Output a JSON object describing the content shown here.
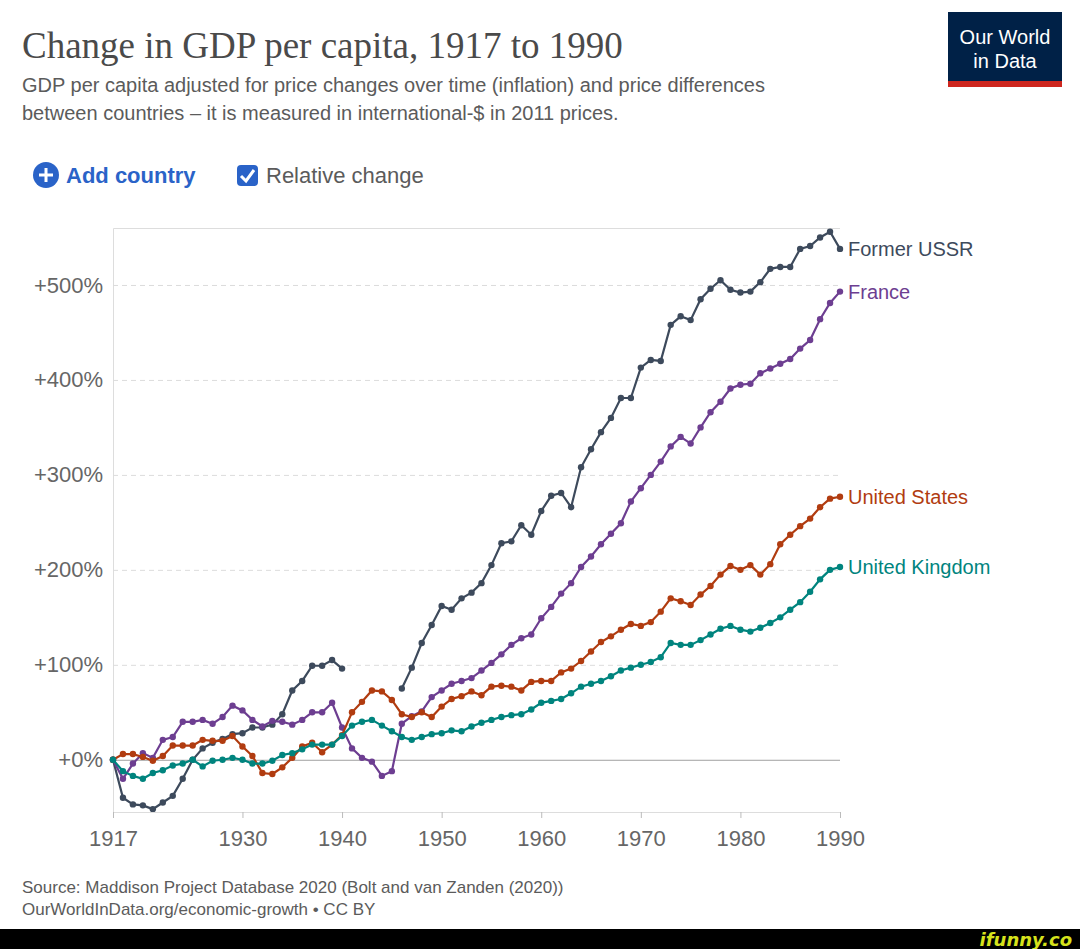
{
  "chart_data": {
    "type": "line",
    "title": "Change in GDP per capita, 1917 to 1990",
    "subtitle": [
      "GDP per capita adjusted for price changes over time (inflation) and price differences",
      "between countries – it is measured in international-$ in 2011 prices."
    ],
    "logo_text": [
      "Our World",
      "in Data"
    ],
    "controls": [
      "Add country",
      "Relative change"
    ],
    "source": [
      "Source: Maddison Project Database 2020 (Bolt and van Zanden (2020))",
      "OurWorldInData.org/economic-growth • CC BY"
    ],
    "watermark": "ifunny.co",
    "x": [
      1917,
      1918,
      1919,
      1920,
      1921,
      1922,
      1923,
      1924,
      1925,
      1926,
      1927,
      1928,
      1929,
      1930,
      1931,
      1932,
      1933,
      1934,
      1935,
      1936,
      1937,
      1938,
      1939,
      1940,
      1941,
      1942,
      1943,
      1944,
      1945,
      1946,
      1947,
      1948,
      1949,
      1950,
      1951,
      1952,
      1953,
      1954,
      1955,
      1956,
      1957,
      1958,
      1959,
      1960,
      1961,
      1962,
      1963,
      1964,
      1965,
      1966,
      1967,
      1968,
      1969,
      1970,
      1971,
      1972,
      1973,
      1974,
      1975,
      1976,
      1977,
      1978,
      1979,
      1980,
      1981,
      1982,
      1983,
      1984,
      1985,
      1986,
      1987,
      1988,
      1989,
      1990
    ],
    "xlim": [
      1917,
      1990
    ],
    "xticks": [
      1917,
      1930,
      1940,
      1950,
      1960,
      1970,
      1980,
      1990
    ],
    "ylim": [
      -55,
      560
    ],
    "yticks": [
      {
        "value": 0,
        "label": "+0%"
      },
      {
        "value": 100,
        "label": "+100%"
      },
      {
        "value": 200,
        "label": "+200%"
      },
      {
        "value": 300,
        "label": "+300%"
      },
      {
        "value": 400,
        "label": "+400%"
      },
      {
        "value": 500,
        "label": "+500%"
      }
    ],
    "grid": true,
    "marker": "circle",
    "series": [
      {
        "name": "Former USSR",
        "color": "#3d4a5c",
        "values": [
          0,
          -40,
          -47,
          -48,
          -52,
          -45,
          -38,
          -20,
          0,
          12,
          18,
          22,
          27,
          28,
          34,
          34,
          37,
          48,
          73,
          83,
          99,
          99,
          105,
          96,
          null,
          null,
          null,
          null,
          null,
          75,
          97,
          123,
          142,
          162,
          158,
          170,
          176,
          186,
          205,
          228,
          230,
          247,
          237,
          262,
          278,
          281,
          266,
          308,
          327,
          345,
          360,
          381,
          381,
          413,
          421,
          420,
          458,
          467,
          463,
          485,
          496,
          505,
          495,
          492,
          493,
          503,
          517,
          519,
          519,
          538,
          541,
          550,
          556,
          538
        ]
      },
      {
        "name": "France",
        "color": "#6d3e91",
        "values": [
          0,
          -20,
          -4,
          7,
          2,
          21,
          24,
          40,
          40,
          42,
          38,
          45,
          57,
          52,
          42,
          35,
          41,
          40,
          37,
          42,
          50,
          50,
          60,
          34,
          12,
          2,
          -2,
          -17,
          -12,
          38,
          46,
          51,
          66,
          73,
          80,
          83,
          86,
          94,
          102,
          111,
          121,
          128,
          132,
          149,
          161,
          175,
          186,
          203,
          214,
          227,
          238,
          249,
          272,
          286,
          300,
          314,
          330,
          340,
          333,
          350,
          366,
          377,
          391,
          395,
          396,
          407,
          412,
          417,
          422,
          433,
          442,
          464,
          481,
          493
        ]
      },
      {
        "name": "United States",
        "color": "#b13c10",
        "values": [
          0,
          6,
          6,
          3,
          -1,
          4,
          15,
          15,
          15,
          21,
          20,
          20,
          25,
          14,
          4,
          -14,
          -15,
          -8,
          2,
          14,
          18,
          8,
          16,
          26,
          50,
          61,
          73,
          72,
          63,
          48,
          45,
          50,
          45,
          56,
          64,
          67,
          72,
          68,
          77,
          78,
          77,
          73,
          82,
          83,
          83,
          92,
          96,
          104,
          114,
          124,
          130,
          137,
          143,
          141,
          145,
          156,
          170,
          167,
          163,
          174,
          183,
          195,
          204,
          200,
          205,
          195,
          206,
          227,
          237,
          246,
          254,
          266,
          275,
          277
        ]
      },
      {
        "name": "United Kingdom",
        "color": "#00847e",
        "values": [
          0,
          -12,
          -17,
          -20,
          -14,
          -11,
          -6,
          -4,
          0,
          -7,
          -1,
          0,
          2,
          0,
          -4,
          -4,
          -1,
          5,
          7,
          11,
          16,
          16,
          16,
          25,
          36,
          40,
          42,
          36,
          30,
          24,
          21,
          24,
          27,
          28,
          31,
          30,
          35,
          39,
          42,
          45,
          47,
          48,
          53,
          60,
          62,
          64,
          70,
          77,
          80,
          83,
          88,
          94,
          97,
          100,
          103,
          108,
          123,
          121,
          121,
          126,
          132,
          138,
          141,
          137,
          135,
          139,
          144,
          150,
          158,
          166,
          177,
          190,
          200,
          203
        ]
      }
    ]
  }
}
